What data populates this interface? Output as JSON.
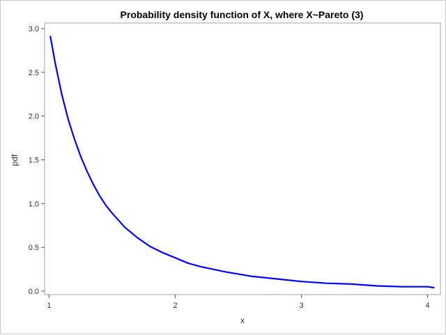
{
  "chart_data": {
    "type": "line",
    "title": "Probability density function of X, where X~Pareto (3)",
    "xlabel": "x",
    "ylabel": "pdf",
    "xlim": [
      1,
      4.05
    ],
    "ylim": [
      0,
      3.0
    ],
    "x_ticks": [
      1,
      2,
      3,
      4
    ],
    "y_ticks": [
      0.0,
      0.5,
      1.0,
      1.5,
      2.0,
      2.5,
      3.0
    ],
    "x_tick_labels": [
      "1",
      "2",
      "3",
      "4"
    ],
    "y_tick_labels": [
      "0.0",
      "0.5",
      "1.0",
      "1.5",
      "2.0",
      "2.5",
      "3.0"
    ],
    "grid": false,
    "legend": "none",
    "series": [
      {
        "color": "#0000ff",
        "x": [
          1.01,
          1.05,
          1.1,
          1.15,
          1.2,
          1.25,
          1.3,
          1.35,
          1.4,
          1.45,
          1.5,
          1.6,
          1.7,
          1.8,
          1.9,
          2.0,
          2.1,
          2.2,
          2.4,
          2.6,
          2.8,
          3.0,
          3.2,
          3.4,
          3.6,
          3.8,
          4.0,
          4.05
        ],
        "y": [
          2.91,
          2.59,
          2.25,
          1.97,
          1.74,
          1.54,
          1.37,
          1.22,
          1.09,
          0.98,
          0.89,
          0.73,
          0.61,
          0.51,
          0.44,
          0.38,
          0.32,
          0.28,
          0.22,
          0.17,
          0.14,
          0.11,
          0.09,
          0.08,
          0.06,
          0.05,
          0.05,
          0.04
        ]
      }
    ]
  }
}
